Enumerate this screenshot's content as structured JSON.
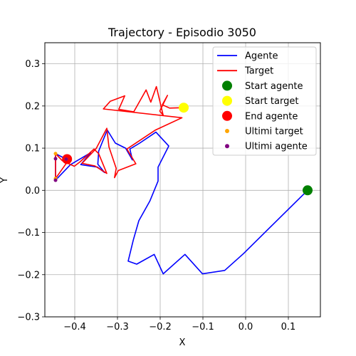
{
  "chart_data": {
    "type": "line",
    "title": "Trajectory - Episodio 3050",
    "xlabel": "X",
    "ylabel": "Y",
    "xlim": [
      -0.47,
      0.175
    ],
    "ylim": [
      -0.3,
      0.35
    ],
    "xticks": [
      -0.4,
      -0.3,
      -0.2,
      -0.1,
      0.0,
      0.1
    ],
    "xtick_labels": [
      "−0.4",
      "−0.3",
      "−0.2",
      "−0.1",
      "0.0",
      "0.1"
    ],
    "yticks": [
      -0.3,
      -0.2,
      -0.1,
      0.0,
      0.1,
      0.2,
      0.3
    ],
    "ytick_labels": [
      "−0.3",
      "−0.2",
      "−0.1",
      "0.0",
      "0.1",
      "0.2",
      "0.3"
    ],
    "grid": true,
    "legend_position": "top-right",
    "series": [
      {
        "name": "Agente",
        "kind": "line",
        "color": "#0000ff",
        "points": [
          [
            0.145,
            0.0
          ],
          [
            0.043,
            -0.102
          ],
          [
            -0.005,
            -0.15
          ],
          [
            -0.049,
            -0.19
          ],
          [
            -0.101,
            -0.198
          ],
          [
            -0.142,
            -0.152
          ],
          [
            -0.193,
            -0.198
          ],
          [
            -0.214,
            -0.152
          ],
          [
            -0.255,
            -0.175
          ],
          [
            -0.275,
            -0.168
          ],
          [
            -0.263,
            -0.118
          ],
          [
            -0.25,
            -0.072
          ],
          [
            -0.224,
            -0.025
          ],
          [
            -0.205,
            0.022
          ],
          [
            -0.205,
            0.055
          ],
          [
            -0.18,
            0.105
          ],
          [
            -0.21,
            0.138
          ],
          [
            -0.248,
            0.112
          ],
          [
            -0.271,
            0.098
          ],
          [
            -0.265,
            0.072
          ],
          [
            -0.281,
            0.1
          ],
          [
            -0.305,
            0.112
          ],
          [
            -0.324,
            0.143
          ],
          [
            -0.344,
            0.093
          ],
          [
            -0.346,
            0.062
          ],
          [
            -0.33,
            0.042
          ],
          [
            -0.347,
            0.055
          ],
          [
            -0.386,
            0.061
          ],
          [
            -0.363,
            0.089
          ],
          [
            -0.41,
            0.061
          ],
          [
            -0.445,
            0.024
          ],
          [
            -0.445,
            0.087
          ],
          [
            -0.42,
            0.074
          ]
        ]
      },
      {
        "name": "Target",
        "kind": "line",
        "color": "#ff0000",
        "points": [
          [
            -0.145,
            0.196
          ],
          [
            -0.178,
            0.195
          ],
          [
            -0.195,
            0.203
          ],
          [
            -0.183,
            0.225
          ],
          [
            -0.201,
            0.188
          ],
          [
            -0.193,
            0.178
          ],
          [
            -0.209,
            0.246
          ],
          [
            -0.222,
            0.209
          ],
          [
            -0.233,
            0.238
          ],
          [
            -0.262,
            0.186
          ],
          [
            -0.297,
            0.192
          ],
          [
            -0.283,
            0.224
          ],
          [
            -0.317,
            0.211
          ],
          [
            -0.333,
            0.193
          ],
          [
            -0.149,
            0.172
          ],
          [
            -0.211,
            0.143
          ],
          [
            -0.278,
            0.098
          ],
          [
            -0.257,
            0.063
          ],
          [
            -0.298,
            0.047
          ],
          [
            -0.307,
            0.03
          ],
          [
            -0.303,
            0.052
          ],
          [
            -0.32,
            0.103
          ],
          [
            -0.325,
            0.147
          ],
          [
            -0.35,
            0.099
          ],
          [
            -0.383,
            0.064
          ],
          [
            -0.353,
            0.058
          ],
          [
            -0.325,
            0.04
          ],
          [
            -0.344,
            0.087
          ],
          [
            -0.355,
            0.098
          ],
          [
            -0.387,
            0.068
          ],
          [
            -0.401,
            0.057
          ],
          [
            -0.429,
            0.07
          ],
          [
            -0.445,
            0.087
          ],
          [
            -0.445,
            0.028
          ],
          [
            -0.415,
            0.071
          ],
          [
            -0.42,
            0.074
          ]
        ]
      },
      {
        "name": "Start agente",
        "kind": "marker",
        "color": "#008000",
        "x": 0.145,
        "y": 0.0
      },
      {
        "name": "Start target",
        "kind": "marker",
        "color": "#ffff00",
        "x": -0.145,
        "y": 0.196
      },
      {
        "name": "End agente",
        "kind": "marker",
        "color": "#ff0000",
        "x": -0.418,
        "y": 0.074
      },
      {
        "name": "Ultimi target",
        "kind": "small-points",
        "color": "#ffa500",
        "points": [
          [
            -0.445,
            0.087
          ],
          [
            -0.445,
            0.028
          ],
          [
            -0.42,
            0.074
          ]
        ]
      },
      {
        "name": "Ultimi agente",
        "kind": "small-points",
        "color": "#800080",
        "points": [
          [
            -0.445,
            0.075
          ],
          [
            -0.445,
            0.024
          ],
          [
            -0.42,
            0.074
          ]
        ]
      }
    ]
  }
}
